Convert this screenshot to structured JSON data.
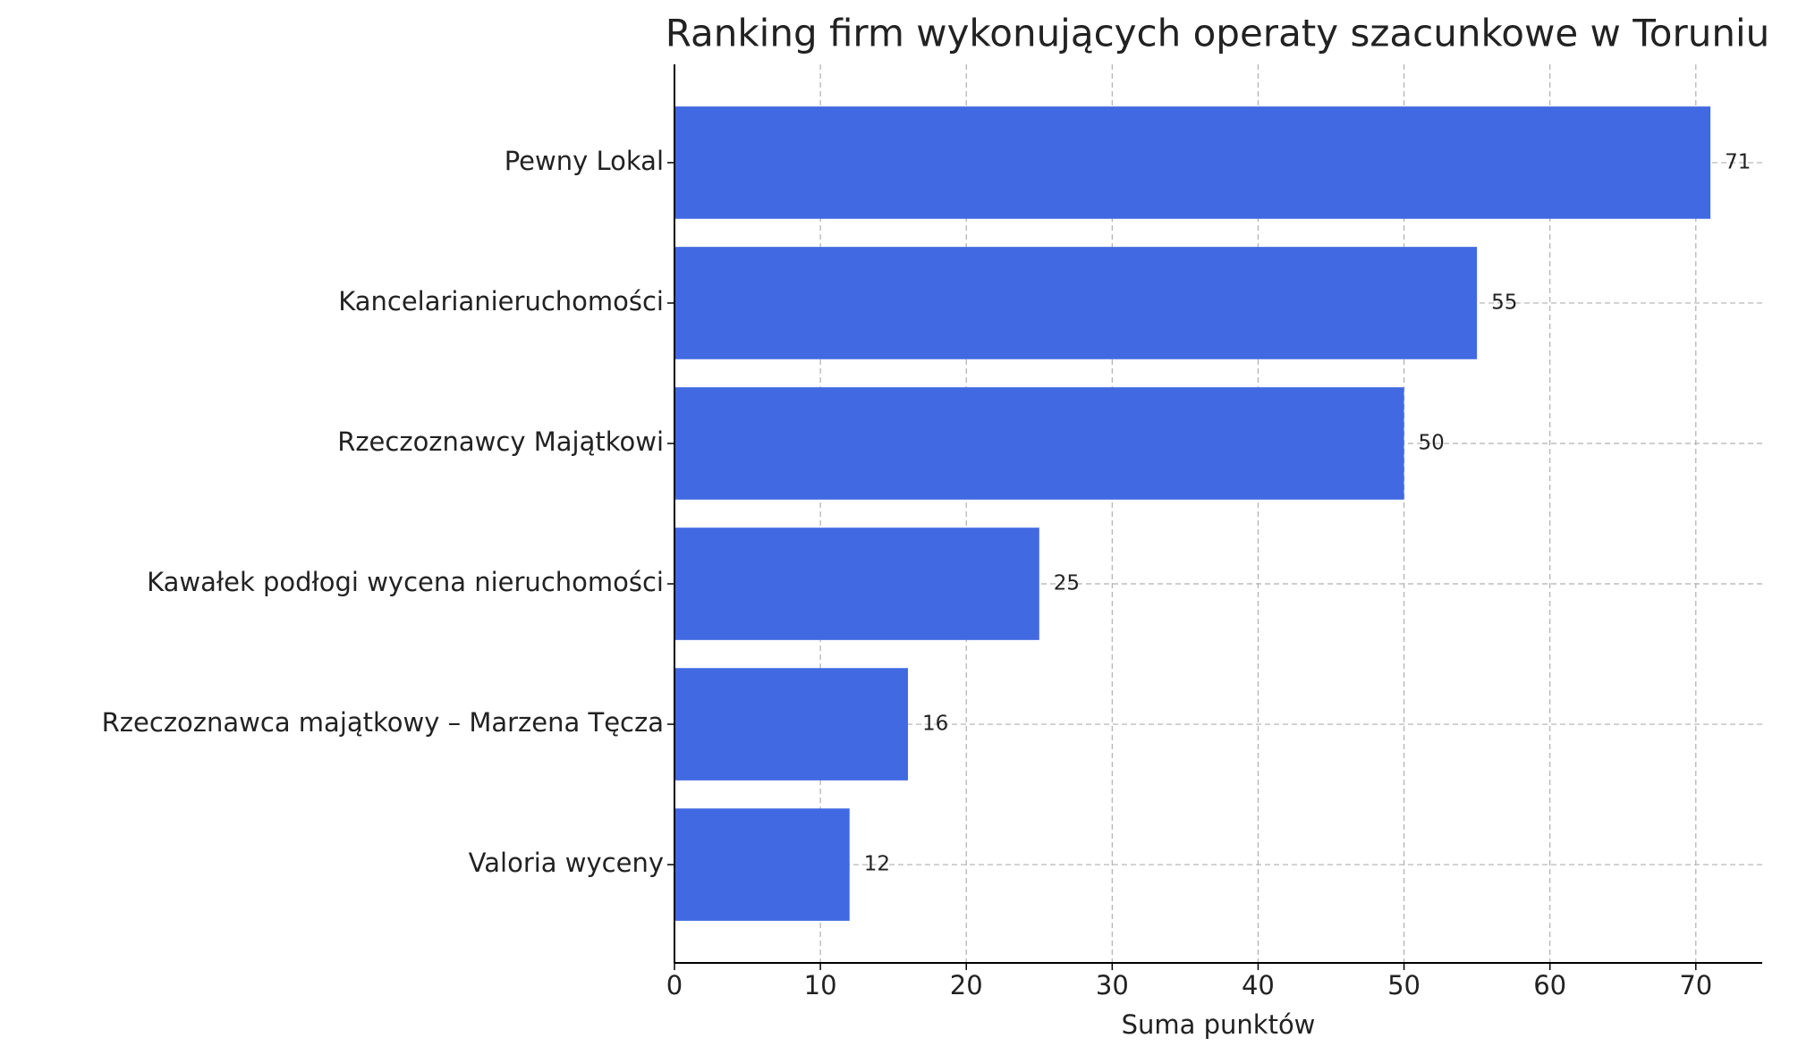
{
  "chart_data": {
    "type": "barh",
    "title": "Ranking firm wykonujących operaty szacunkowe w Toruniu",
    "x_label": "Suma punktów",
    "categories": [
      "Pewny Lokal",
      "Kancelarianieruchomości",
      "Rzeczoznawcy Majątkowi",
      "Kawałek podłogi wycena nieruchomości",
      "Rzeczoznawca majątkowy – Marzena Tęcza",
      "Valoria wyceny"
    ],
    "values": [
      71,
      55,
      50,
      25,
      16,
      12
    ],
    "color": "#4169e1",
    "xlim": [
      0,
      74.55
    ],
    "xticks": [
      0,
      10,
      20,
      30,
      40,
      50,
      60,
      70
    ],
    "grid": true
  }
}
